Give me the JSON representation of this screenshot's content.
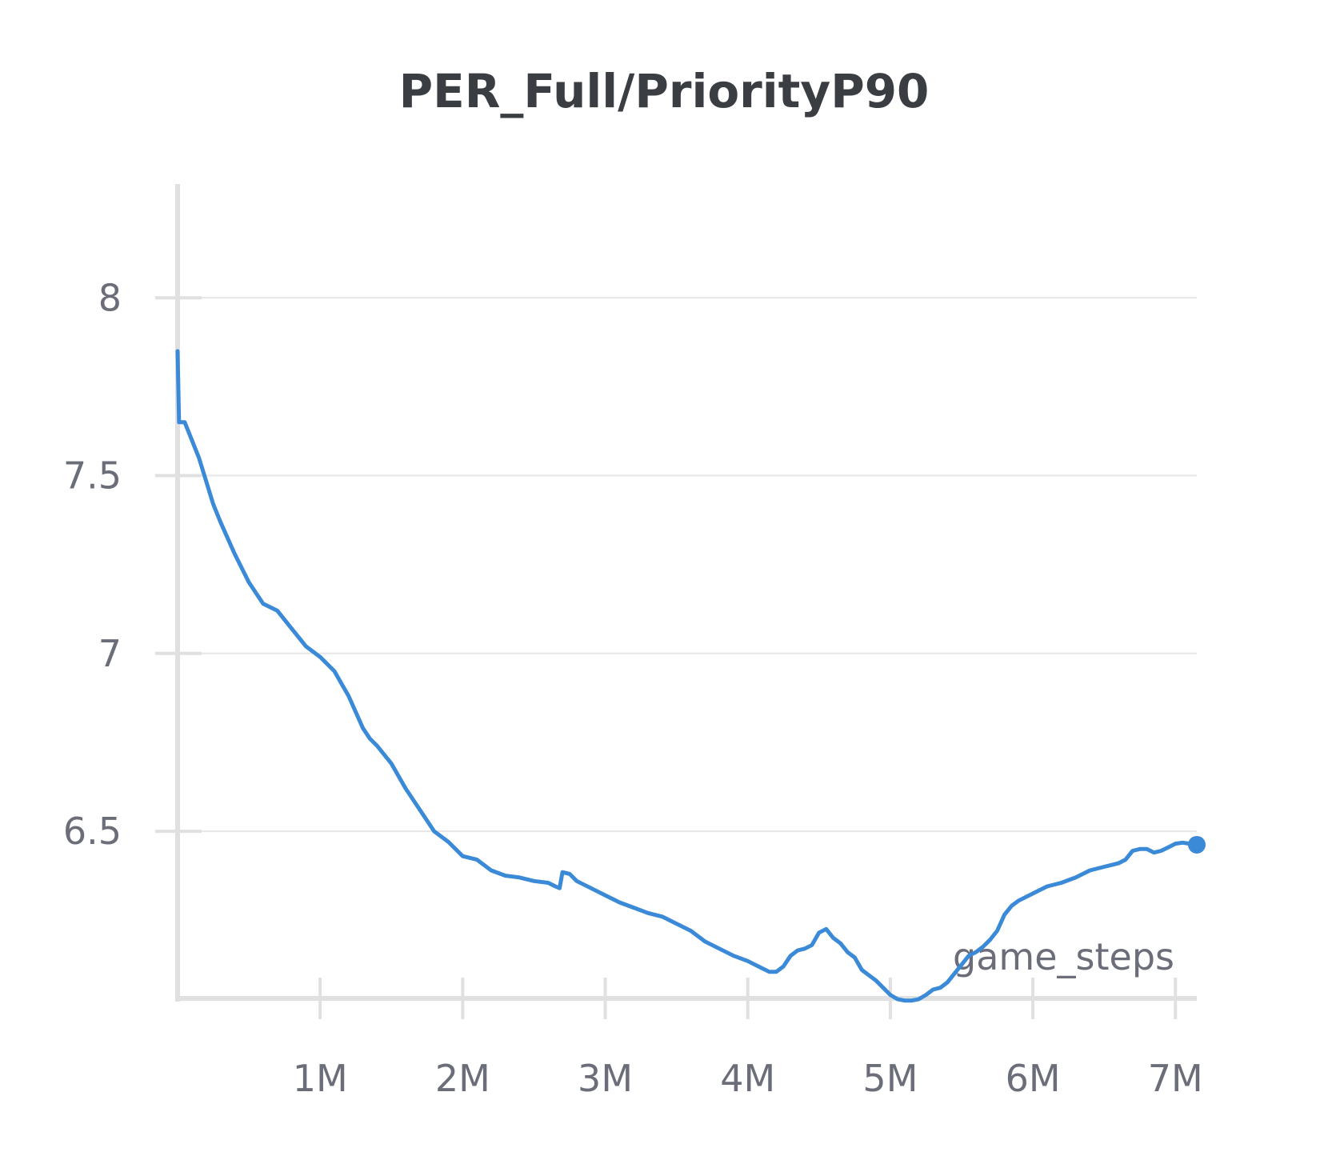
{
  "chart_data": {
    "type": "line",
    "title": "PER_Full/PriorityP90",
    "xlabel": "game_steps",
    "ylabel": "",
    "xlim": [
      0,
      7150000
    ],
    "ylim": [
      6.03,
      8.32
    ],
    "x_ticks": [
      1000000,
      2000000,
      3000000,
      4000000,
      5000000,
      6000000,
      7000000
    ],
    "x_tick_labels": [
      "1M",
      "2M",
      "3M",
      "4M",
      "5M",
      "6M",
      "7M"
    ],
    "y_ticks": [
      6.5,
      7,
      7.5,
      8
    ],
    "y_tick_labels": [
      "6.5",
      "7",
      "7.5",
      "8"
    ],
    "grid": "horizontal",
    "legend": "none",
    "colors": {
      "line": "#3b8ad8",
      "grid": "#e6e6e6",
      "axis": "#e0e0e0",
      "title": "#3a3d42",
      "ticks": "#6b6e78"
    },
    "series": [
      {
        "x": [
          0,
          10000,
          50000,
          100000,
          150000,
          250000,
          300000,
          400000,
          500000,
          600000,
          700000,
          800000,
          900000,
          1000000,
          1100000,
          1200000,
          1300000,
          1350000,
          1400000,
          1500000,
          1600000,
          1700000,
          1800000,
          1900000,
          2000000,
          2100000,
          2200000,
          2300000,
          2400000,
          2500000,
          2600000,
          2650000,
          2680000,
          2700000,
          2750000,
          2800000,
          2900000,
          3000000,
          3100000,
          3200000,
          3300000,
          3400000,
          3500000,
          3600000,
          3700000,
          3800000,
          3900000,
          4000000,
          4050000,
          4100000,
          4150000,
          4200000,
          4250000,
          4300000,
          4350000,
          4400000,
          4450000,
          4500000,
          4550000,
          4600000,
          4650000,
          4700000,
          4750000,
          4800000,
          4850000,
          4900000,
          4950000,
          5000000,
          5050000,
          5100000,
          5150000,
          5200000,
          5250000,
          5300000,
          5350000,
          5400000,
          5450000,
          5500000,
          5550000,
          5600000,
          5650000,
          5700000,
          5750000,
          5800000,
          5850000,
          5900000,
          6000000,
          6100000,
          6200000,
          6300000,
          6400000,
          6500000,
          6550000,
          6600000,
          6650000,
          6700000,
          6750000,
          6800000,
          6850000,
          6900000,
          6950000,
          7000000,
          7050000,
          7100000,
          7150000
        ],
        "y": [
          7.85,
          7.65,
          7.65,
          7.6,
          7.55,
          7.42,
          7.37,
          7.28,
          7.2,
          7.14,
          7.12,
          7.07,
          7.02,
          6.99,
          6.95,
          6.88,
          6.79,
          6.76,
          6.74,
          6.69,
          6.62,
          6.56,
          6.5,
          6.47,
          6.43,
          6.42,
          6.39,
          6.375,
          6.37,
          6.36,
          6.355,
          6.345,
          6.34,
          6.385,
          6.38,
          6.36,
          6.34,
          6.32,
          6.3,
          6.285,
          6.27,
          6.26,
          6.24,
          6.22,
          6.19,
          6.17,
          6.15,
          6.135,
          6.125,
          6.115,
          6.105,
          6.105,
          6.12,
          6.15,
          6.165,
          6.17,
          6.18,
          6.215,
          6.225,
          6.2,
          6.185,
          6.16,
          6.145,
          6.11,
          6.095,
          6.08,
          6.06,
          6.04,
          6.028,
          6.024,
          6.024,
          6.028,
          6.04,
          6.055,
          6.06,
          6.075,
          6.1,
          6.125,
          6.15,
          6.16,
          6.175,
          6.195,
          6.22,
          6.265,
          6.29,
          6.305,
          6.325,
          6.345,
          6.355,
          6.37,
          6.39,
          6.4,
          6.405,
          6.41,
          6.42,
          6.445,
          6.45,
          6.45,
          6.44,
          6.445,
          6.455,
          6.465,
          6.468,
          6.465,
          6.462
        ]
      }
    ]
  }
}
